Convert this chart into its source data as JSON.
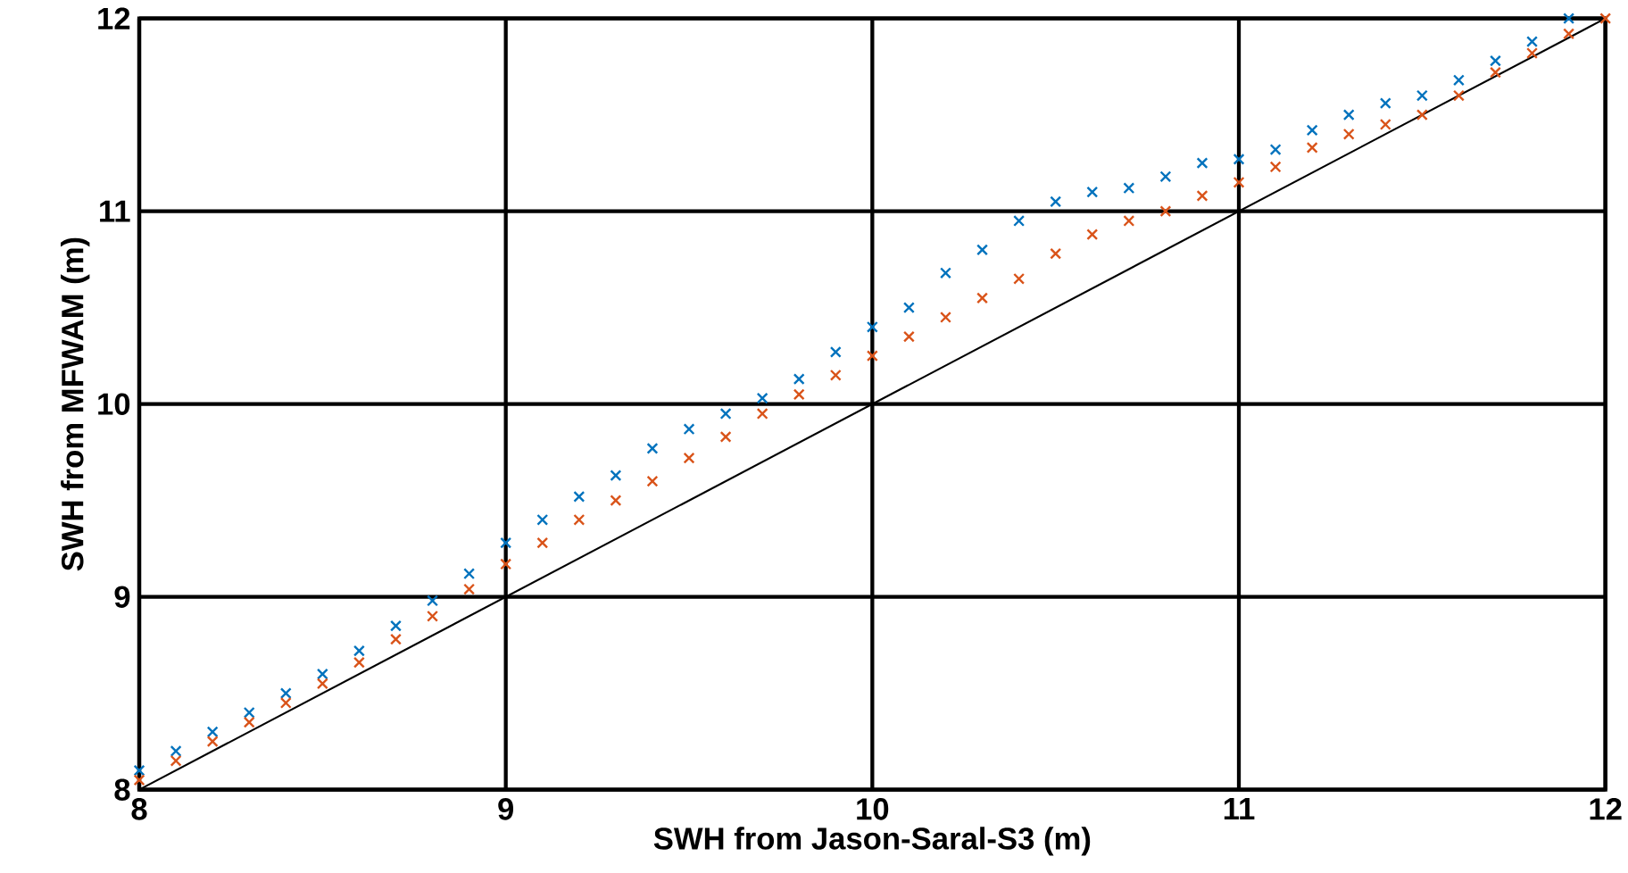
{
  "chart_data": {
    "type": "scatter",
    "xlabel": "SWH from Jason-Saral-S3 (m)",
    "ylabel": "SWH from MFWAM (m)",
    "xlim": [
      8,
      12
    ],
    "ylim": [
      8,
      12
    ],
    "xticks": [
      8,
      9,
      10,
      11,
      12
    ],
    "yticks": [
      8,
      9,
      10,
      11,
      12
    ],
    "grid": true,
    "marker": "cross",
    "series": [
      {
        "color": "#0072bd",
        "x": [
          8.0,
          8.1,
          8.2,
          8.3,
          8.4,
          8.5,
          8.6,
          8.7,
          8.8,
          8.9,
          9.0,
          9.1,
          9.2,
          9.3,
          9.4,
          9.5,
          9.6,
          9.7,
          9.8,
          9.9,
          10.0,
          10.1,
          10.2,
          10.3,
          10.4,
          10.5,
          10.6,
          10.7,
          10.8,
          10.9,
          11.0,
          11.1,
          11.2,
          11.3,
          11.4,
          11.5,
          11.6,
          11.7,
          11.8,
          11.9
        ],
        "values": [
          8.1,
          8.2,
          8.3,
          8.4,
          8.5,
          8.6,
          8.72,
          8.85,
          8.98,
          9.12,
          9.28,
          9.4,
          9.52,
          9.63,
          9.77,
          9.87,
          9.95,
          10.03,
          10.13,
          10.27,
          10.4,
          10.5,
          10.68,
          10.8,
          10.95,
          11.05,
          11.1,
          11.12,
          11.18,
          11.25,
          11.27,
          11.32,
          11.42,
          11.5,
          11.56,
          11.6,
          11.68,
          11.78,
          11.88,
          12.0
        ]
      },
      {
        "color": "#d95319",
        "x": [
          8.0,
          8.1,
          8.2,
          8.3,
          8.4,
          8.5,
          8.6,
          8.7,
          8.8,
          8.9,
          9.0,
          9.1,
          9.2,
          9.3,
          9.4,
          9.5,
          9.6,
          9.7,
          9.8,
          9.9,
          10.0,
          10.1,
          10.2,
          10.3,
          10.4,
          10.5,
          10.6,
          10.7,
          10.8,
          10.9,
          11.0,
          11.1,
          11.2,
          11.3,
          11.4,
          11.5,
          11.6,
          11.7,
          11.8,
          11.9,
          12.0
        ],
        "values": [
          8.05,
          8.15,
          8.25,
          8.35,
          8.45,
          8.55,
          8.66,
          8.78,
          8.9,
          9.04,
          9.17,
          9.28,
          9.4,
          9.5,
          9.6,
          9.72,
          9.83,
          9.95,
          10.05,
          10.15,
          10.25,
          10.35,
          10.45,
          10.55,
          10.65,
          10.78,
          10.88,
          10.95,
          11.0,
          11.08,
          11.15,
          11.23,
          11.33,
          11.4,
          11.45,
          11.5,
          11.6,
          11.72,
          11.82,
          11.92,
          12.0
        ]
      },
      {
        "type": "line",
        "color": "#000000",
        "marker": "none",
        "x": [
          8,
          12
        ],
        "values": [
          8,
          12
        ]
      }
    ]
  }
}
